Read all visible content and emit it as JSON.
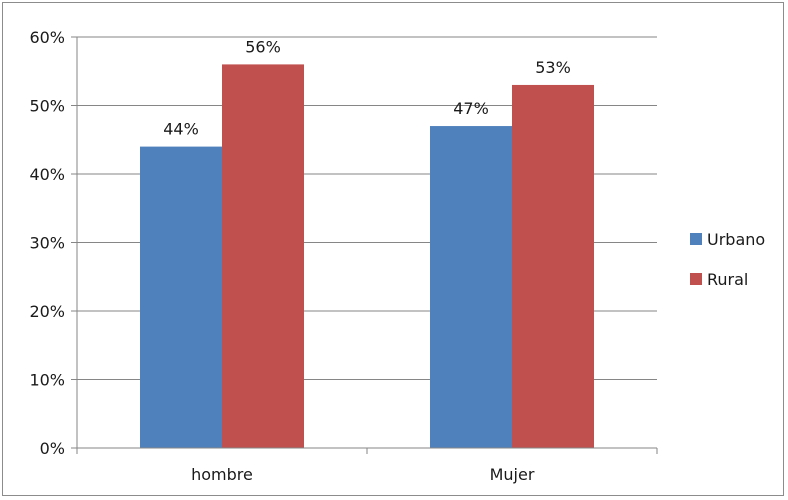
{
  "chart_data": {
    "type": "bar",
    "categories": [
      "hombre",
      "Mujer"
    ],
    "series": [
      {
        "name": "Urbano",
        "values": [
          44,
          47
        ],
        "labels": [
          "44%",
          "47%"
        ],
        "color": "#4f81bd"
      },
      {
        "name": "Rural",
        "values": [
          56,
          53
        ],
        "labels": [
          "56%",
          "53%"
        ],
        "color": "#c0504d"
      }
    ],
    "ylim": [
      0,
      60
    ],
    "yticks": [
      "0%",
      "10%",
      "20%",
      "30%",
      "40%",
      "50%",
      "60%"
    ],
    "grid": true,
    "legend": "right",
    "title": "",
    "xlabel": "",
    "ylabel": ""
  }
}
